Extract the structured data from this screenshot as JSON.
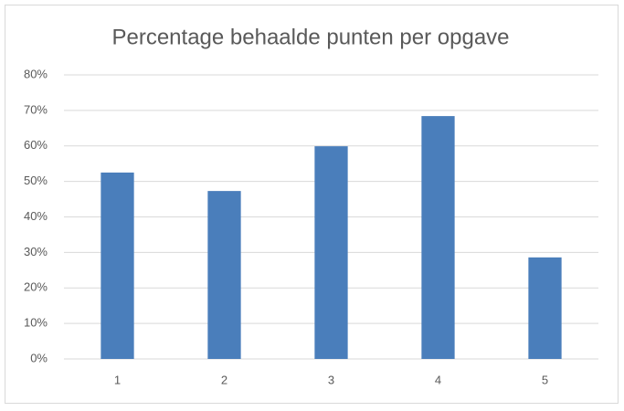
{
  "chart_data": {
    "type": "bar",
    "title": "Percentage behaalde punten per opgave",
    "categories": [
      "1",
      "2",
      "3",
      "4",
      "5"
    ],
    "values": [
      52.5,
      47.3,
      59.9,
      68.4,
      28.6
    ],
    "color": "#4a7ebb",
    "ylim": [
      0,
      80
    ],
    "yticks": [
      {
        "value": 0,
        "label": "0%"
      },
      {
        "value": 10,
        "label": "10%"
      },
      {
        "value": 20,
        "label": "20%"
      },
      {
        "value": 30,
        "label": "30%"
      },
      {
        "value": 40,
        "label": "40%"
      },
      {
        "value": 50,
        "label": "50%"
      },
      {
        "value": 60,
        "label": "60%"
      },
      {
        "value": 70,
        "label": "70%"
      },
      {
        "value": 80,
        "label": "80%"
      }
    ],
    "grid": true
  }
}
